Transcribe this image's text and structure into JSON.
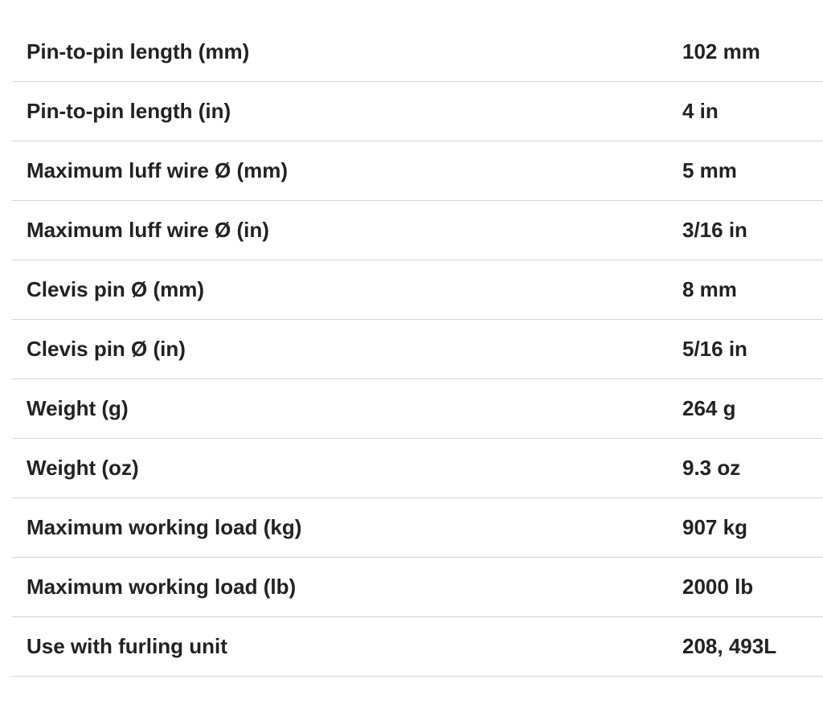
{
  "table": {
    "rows": [
      [
        "Pin-to-pin length (mm)",
        "102 mm"
      ],
      [
        "Pin-to-pin length (in)",
        "4 in"
      ],
      [
        "Maximum luff wire Ø (mm)",
        "5 mm"
      ],
      [
        "Maximum luff wire Ø (in)",
        "3/16 in"
      ],
      [
        "Clevis pin Ø (mm)",
        "8 mm"
      ],
      [
        "Clevis pin Ø (in)",
        "5/16 in"
      ],
      [
        "Weight (g)",
        "264 g"
      ],
      [
        "Weight (oz)",
        "9.3 oz"
      ],
      [
        "Maximum working load (kg)",
        "907 kg"
      ],
      [
        "Maximum working load (lb)",
        "2000 lb"
      ],
      [
        "Use with furling unit",
        "208, 493L"
      ]
    ]
  }
}
